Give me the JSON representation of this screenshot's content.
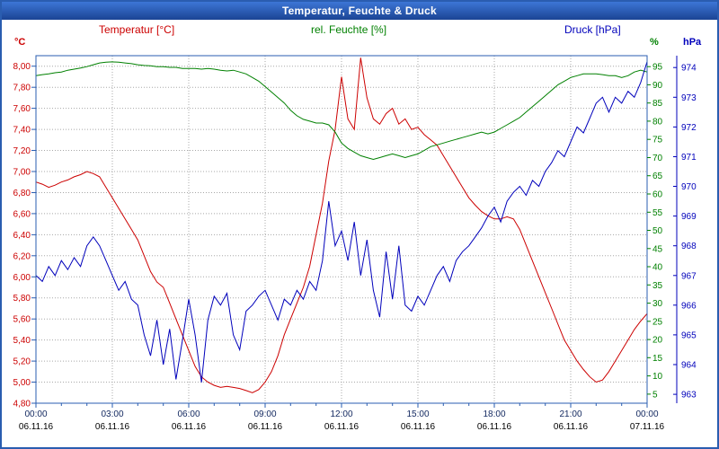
{
  "window": {
    "title": "Temperatur, Feuchte & Druck"
  },
  "header": {
    "series_labels": [
      {
        "label": "Temperatur [°C]",
        "color": "#cc0000"
      },
      {
        "label": "rel. Feuchte [%]",
        "color": "#008000"
      },
      {
        "label": "Druck [hPa]",
        "color": "#0000bb"
      }
    ],
    "unit_left": "°C",
    "unit_percent": "%",
    "unit_hpa": "hPa"
  },
  "chart_data": {
    "type": "line",
    "title": "Temperatur, Feuchte & Druck",
    "grid": true,
    "legend_position": "top",
    "x_start": 0,
    "x_end": 24,
    "x_step_hours": 0.25,
    "x_grid_hours": 3,
    "x_ticks": [
      {
        "time": "00:00",
        "date": "06.11.16"
      },
      {
        "time": "03:00",
        "date": "06.11.16"
      },
      {
        "time": "06:00",
        "date": "06.11.16"
      },
      {
        "time": "09:00",
        "date": "06.11.16"
      },
      {
        "time": "12:00",
        "date": "06.11.16"
      },
      {
        "time": "15:00",
        "date": "06.11.16"
      },
      {
        "time": "18:00",
        "date": "06.11.16"
      },
      {
        "time": "21:00",
        "date": "06.11.16"
      },
      {
        "time": "00:00",
        "date": "07.11.16"
      }
    ],
    "axes": {
      "temperature": {
        "unit": "°C",
        "color": "#cc0000",
        "min": 4.8,
        "max": 8.1,
        "decimals": 2,
        "ticks": [
          8.0,
          7.8,
          7.6,
          7.4,
          7.2,
          7.0,
          6.8,
          6.6,
          6.4,
          6.2,
          6.0,
          5.8,
          5.6,
          5.4,
          5.2,
          5.0,
          4.8
        ]
      },
      "humidity": {
        "unit": "%",
        "color": "#008000",
        "min": 2.5,
        "max": 98,
        "decimals": 0,
        "ticks": [
          95,
          90,
          85,
          80,
          75,
          70,
          65,
          60,
          55,
          50,
          45,
          40,
          35,
          30,
          25,
          20,
          15,
          10,
          5
        ]
      },
      "pressure": {
        "unit": "hPa",
        "color": "#0000bb",
        "min": 962.7,
        "max": 974.4,
        "decimals": 0,
        "ticks": [
          974,
          973,
          972,
          971,
          970,
          969,
          968,
          967,
          966,
          965,
          964,
          963
        ]
      }
    },
    "series": [
      {
        "name": "Temperatur [°C]",
        "axis": "temperature",
        "color": "#cc0000",
        "values": [
          6.9,
          6.88,
          6.85,
          6.87,
          6.9,
          6.92,
          6.95,
          6.97,
          7.0,
          6.98,
          6.95,
          6.85,
          6.75,
          6.65,
          6.55,
          6.45,
          6.35,
          6.2,
          6.05,
          5.95,
          5.9,
          5.75,
          5.6,
          5.45,
          5.3,
          5.15,
          5.05,
          5.0,
          4.97,
          4.95,
          4.96,
          4.95,
          4.94,
          4.92,
          4.9,
          4.93,
          5.0,
          5.1,
          5.25,
          5.45,
          5.6,
          5.75,
          5.9,
          6.1,
          6.4,
          6.7,
          7.1,
          7.4,
          7.9,
          7.5,
          7.4,
          8.08,
          7.7,
          7.5,
          7.45,
          7.55,
          7.6,
          7.45,
          7.5,
          7.4,
          7.42,
          7.35,
          7.3,
          7.25,
          7.15,
          7.05,
          6.95,
          6.85,
          6.75,
          6.68,
          6.62,
          6.58,
          6.55,
          6.55,
          6.57,
          6.55,
          6.45,
          6.3,
          6.15,
          6.0,
          5.85,
          5.7,
          5.55,
          5.4,
          5.3,
          5.2,
          5.12,
          5.05,
          5.0,
          5.02,
          5.1,
          5.2,
          5.3,
          5.4,
          5.5,
          5.58,
          5.65
        ]
      },
      {
        "name": "rel. Feuchte [%]",
        "axis": "humidity",
        "color": "#008000",
        "values": [
          92.5,
          92.8,
          93.0,
          93.3,
          93.5,
          94.0,
          94.3,
          94.6,
          95.0,
          95.5,
          96.0,
          96.2,
          96.3,
          96.2,
          96.0,
          95.8,
          95.5,
          95.3,
          95.2,
          95.0,
          95.0,
          94.8,
          94.8,
          94.5,
          94.5,
          94.5,
          94.3,
          94.5,
          94.3,
          94.0,
          93.8,
          94.0,
          93.5,
          93.0,
          92.0,
          91.0,
          89.5,
          88.0,
          86.5,
          85.0,
          83.0,
          81.5,
          80.5,
          80.0,
          79.5,
          79.5,
          79.0,
          77.0,
          74.0,
          72.5,
          71.5,
          70.5,
          70.0,
          69.5,
          70.0,
          70.5,
          71.0,
          70.5,
          70.0,
          70.5,
          71.0,
          72.0,
          73.0,
          73.5,
          74.0,
          74.5,
          75.0,
          75.5,
          76.0,
          76.5,
          77.0,
          76.5,
          77.0,
          78.0,
          79.0,
          80.0,
          81.0,
          82.5,
          84.0,
          85.5,
          87.0,
          88.5,
          90.0,
          91.0,
          92.0,
          92.5,
          93.0,
          93.0,
          93.0,
          92.8,
          92.5,
          92.5,
          92.0,
          92.5,
          93.5,
          94.0,
          93.5
        ]
      },
      {
        "name": "Druck [hPa]",
        "axis": "pressure",
        "color": "#0000bb",
        "values": [
          967.0,
          966.8,
          967.3,
          967.0,
          967.5,
          967.2,
          967.6,
          967.3,
          968.0,
          968.3,
          968.0,
          967.5,
          967.0,
          966.5,
          966.8,
          966.2,
          966.0,
          965.0,
          964.3,
          965.5,
          964.0,
          965.2,
          963.5,
          964.8,
          966.2,
          965.0,
          963.4,
          965.5,
          966.3,
          966.0,
          966.4,
          965.0,
          964.5,
          965.8,
          966.0,
          966.3,
          966.5,
          966.0,
          965.5,
          966.2,
          966.0,
          966.5,
          966.2,
          966.8,
          966.5,
          967.5,
          969.5,
          968.0,
          968.5,
          967.5,
          968.8,
          967.0,
          968.2,
          966.5,
          965.6,
          967.8,
          966.2,
          968.0,
          966.0,
          965.8,
          966.3,
          966.0,
          966.5,
          967.0,
          967.3,
          966.8,
          967.5,
          967.8,
          968.0,
          968.3,
          968.6,
          969.0,
          969.3,
          968.8,
          969.5,
          969.8,
          970.0,
          969.7,
          970.2,
          970.0,
          970.5,
          970.8,
          971.2,
          971.0,
          971.5,
          972.0,
          971.8,
          972.3,
          972.8,
          973.0,
          972.5,
          973.0,
          972.8,
          973.2,
          973.0,
          973.5,
          974.2
        ]
      }
    ],
    "style": {
      "grid_color": "#a8a8a8",
      "plot_border_color": "#2a5db0",
      "time_label_color": "#10265e",
      "date_label_color": "#000000"
    }
  }
}
